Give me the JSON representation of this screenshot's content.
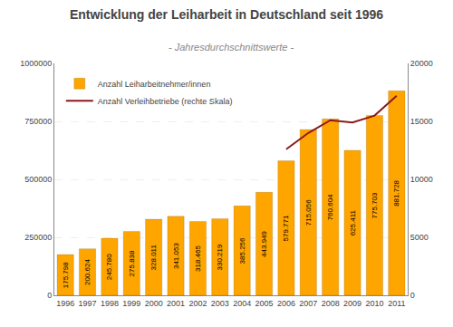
{
  "chart_data": {
    "type": "bar",
    "title": "Entwicklung der Leiharbeit in Deutschland seit 1996",
    "subtitle": "- Jahresdurchschnittswerte -",
    "categories": [
      "1996",
      "1997",
      "1998",
      "1999",
      "2000",
      "2001",
      "2002",
      "2003",
      "2004",
      "2005",
      "2006",
      "2007",
      "2008",
      "2009",
      "2010",
      "2011"
    ],
    "series": [
      {
        "name": "Anzahl Leiharbeitnehmer/innen",
        "type": "bar",
        "color": "#FFA500",
        "values": [
          175798,
          200624,
          245780,
          275838,
          328011,
          341053,
          318465,
          330219,
          385256,
          443949,
          579771,
          715056,
          760604,
          625411,
          775703,
          881728
        ],
        "value_labels": [
          "175.798",
          "200.624",
          "245.780",
          "275.838",
          "328.011",
          "341.053",
          "318.465",
          "330.219",
          "385.256",
          "443.949",
          "579.771",
          "715.056",
          "760.604",
          "625.411",
          "775.703",
          "881.728"
        ]
      },
      {
        "name": "Anzahl Verleihbetriebe (rechte Skala)",
        "type": "line",
        "color": "#8B1A1A",
        "axis": "y2",
        "values": [
          null,
          null,
          null,
          null,
          null,
          null,
          null,
          null,
          null,
          null,
          12600,
          14000,
          15100,
          14900,
          15500,
          17200
        ]
      }
    ],
    "ylim": [
      0,
      1000000
    ],
    "yticks": [
      0,
      250000,
      500000,
      750000,
      1000000
    ],
    "y2lim": [
      0,
      20000
    ],
    "y2ticks": [
      0,
      5000,
      10000,
      15000,
      20000
    ],
    "grid": true,
    "legend": "upper left",
    "data_labels": true
  }
}
